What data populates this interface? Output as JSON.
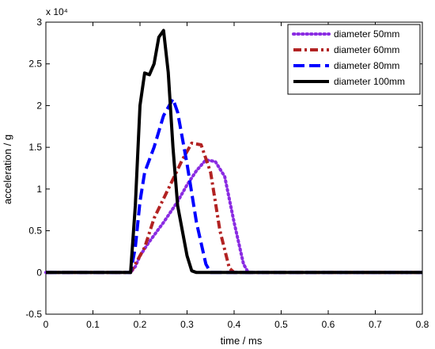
{
  "chart_data": {
    "type": "line",
    "title": "",
    "xlabel": "time  /  ms",
    "ylabel": "acceleration  /  g",
    "y_exponent_label": "x 10⁴",
    "y_scale_factor": 10000,
    "xlim": [
      0,
      0.8
    ],
    "ylim": [
      -0.5,
      3
    ],
    "x_ticks": [
      0,
      0.1,
      0.2,
      0.3,
      0.4,
      0.5,
      0.6,
      0.7,
      0.8
    ],
    "x_tick_labels": [
      "0",
      "0.1",
      "0.2",
      "0.3",
      "0.4",
      "0.5",
      "0.6",
      "0.7",
      "0.8"
    ],
    "y_ticks": [
      -0.5,
      0,
      0.5,
      1,
      1.5,
      2,
      2.5,
      3
    ],
    "y_tick_labels": [
      "-0.5",
      "0",
      "0.5",
      "1",
      "1.5",
      "2",
      "2.5",
      "3"
    ],
    "grid": false,
    "legend_position": "top-right",
    "series": [
      {
        "name": "diameter 50mm",
        "color": "#8a2be2",
        "style": "dotted",
        "points": [
          [
            0,
            0
          ],
          [
            0.18,
            0
          ],
          [
            0.19,
            0.07
          ],
          [
            0.2,
            0.2
          ],
          [
            0.22,
            0.37
          ],
          [
            0.25,
            0.6
          ],
          [
            0.28,
            0.85
          ],
          [
            0.3,
            1.05
          ],
          [
            0.32,
            1.22
          ],
          [
            0.34,
            1.35
          ],
          [
            0.36,
            1.33
          ],
          [
            0.38,
            1.15
          ],
          [
            0.4,
            0.6
          ],
          [
            0.42,
            0.1
          ],
          [
            0.43,
            0
          ],
          [
            0.8,
            0
          ]
        ]
      },
      {
        "name": "diameter 60mm",
        "color": "#b22222",
        "style": "dashdot",
        "points": [
          [
            0,
            0
          ],
          [
            0.18,
            0
          ],
          [
            0.19,
            0.1
          ],
          [
            0.21,
            0.3
          ],
          [
            0.23,
            0.65
          ],
          [
            0.26,
            1.0
          ],
          [
            0.29,
            1.35
          ],
          [
            0.31,
            1.55
          ],
          [
            0.33,
            1.53
          ],
          [
            0.35,
            1.2
          ],
          [
            0.37,
            0.5
          ],
          [
            0.39,
            0.05
          ],
          [
            0.4,
            0
          ],
          [
            0.8,
            0
          ]
        ]
      },
      {
        "name": "diameter 80mm",
        "color": "#0000ff",
        "style": "dashed",
        "points": [
          [
            0,
            0
          ],
          [
            0.18,
            0
          ],
          [
            0.19,
            0.3
          ],
          [
            0.2,
            0.85
          ],
          [
            0.21,
            1.2
          ],
          [
            0.23,
            1.5
          ],
          [
            0.25,
            1.88
          ],
          [
            0.27,
            2.08
          ],
          [
            0.28,
            1.92
          ],
          [
            0.3,
            1.3
          ],
          [
            0.32,
            0.6
          ],
          [
            0.34,
            0.1
          ],
          [
            0.35,
            0
          ],
          [
            0.8,
            0
          ]
        ]
      },
      {
        "name": "diameter 100mm",
        "color": "#000000",
        "style": "solid",
        "points": [
          [
            0,
            0
          ],
          [
            0.18,
            0
          ],
          [
            0.19,
            0.8
          ],
          [
            0.2,
            2.0
          ],
          [
            0.21,
            2.39
          ],
          [
            0.22,
            2.37
          ],
          [
            0.23,
            2.5
          ],
          [
            0.24,
            2.82
          ],
          [
            0.25,
            2.9
          ],
          [
            0.26,
            2.4
          ],
          [
            0.27,
            1.5
          ],
          [
            0.28,
            0.8
          ],
          [
            0.3,
            0.2
          ],
          [
            0.31,
            0.02
          ],
          [
            0.32,
            0
          ],
          [
            0.8,
            0
          ]
        ]
      }
    ]
  }
}
